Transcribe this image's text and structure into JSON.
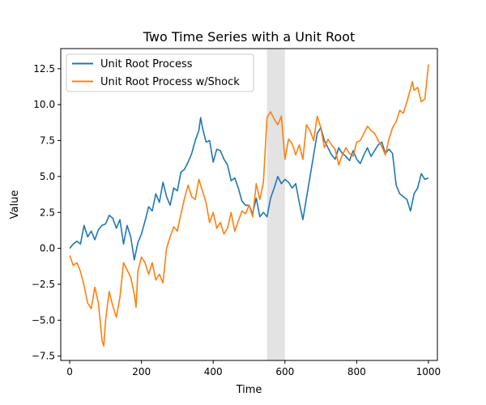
{
  "chart_data": {
    "type": "line",
    "title": "Two Time Series with a Unit Root",
    "xlabel": "Time",
    "ylabel": "Value",
    "xlim": [
      -25,
      1025
    ],
    "ylim": [
      -7.8,
      13.9
    ],
    "x_ticks": [
      0,
      200,
      400,
      600,
      800,
      1000
    ],
    "x_tick_labels": [
      "0",
      "200",
      "400",
      "600",
      "800",
      "1000"
    ],
    "y_ticks": [
      -7.5,
      -5.0,
      -2.5,
      0.0,
      2.5,
      5.0,
      7.5,
      10.0,
      12.5
    ],
    "y_tick_labels": [
      "−7.5",
      "−5.0",
      "−2.5",
      "0.0",
      "2.5",
      "5.0",
      "7.5",
      "10.0",
      "12.5"
    ],
    "grid": false,
    "legend_position": "top-left",
    "shaded_region": {
      "x_start": 550,
      "x_end": 600,
      "color": "#e3e3e3"
    },
    "series": [
      {
        "name": "Unit Root Process",
        "color": "#1f77b4",
        "points": [
          [
            0,
            0.0
          ],
          [
            10,
            0.3
          ],
          [
            20,
            0.5
          ],
          [
            30,
            0.3
          ],
          [
            40,
            1.6
          ],
          [
            50,
            0.8
          ],
          [
            60,
            1.2
          ],
          [
            70,
            0.6
          ],
          [
            80,
            1.3
          ],
          [
            90,
            1.6
          ],
          [
            100,
            1.7
          ],
          [
            110,
            2.3
          ],
          [
            120,
            2.1
          ],
          [
            130,
            1.4
          ],
          [
            140,
            2.0
          ],
          [
            150,
            0.3
          ],
          [
            160,
            1.6
          ],
          [
            170,
            0.8
          ],
          [
            180,
            -0.8
          ],
          [
            190,
            0.4
          ],
          [
            200,
            1.0
          ],
          [
            210,
            1.9
          ],
          [
            220,
            2.9
          ],
          [
            230,
            2.6
          ],
          [
            240,
            3.8
          ],
          [
            250,
            3.2
          ],
          [
            260,
            4.6
          ],
          [
            270,
            3.6
          ],
          [
            280,
            3.0
          ],
          [
            290,
            4.2
          ],
          [
            300,
            4.0
          ],
          [
            310,
            5.3
          ],
          [
            320,
            5.5
          ],
          [
            330,
            6.0
          ],
          [
            340,
            6.6
          ],
          [
            350,
            7.5
          ],
          [
            360,
            8.2
          ],
          [
            365,
            9.1
          ],
          [
            370,
            8.4
          ],
          [
            380,
            7.4
          ],
          [
            390,
            7.5
          ],
          [
            400,
            6.0
          ],
          [
            410,
            6.9
          ],
          [
            420,
            6.8
          ],
          [
            430,
            6.2
          ],
          [
            440,
            5.8
          ],
          [
            450,
            4.7
          ],
          [
            460,
            4.9
          ],
          [
            470,
            4.2
          ],
          [
            480,
            3.3
          ],
          [
            490,
            3.0
          ],
          [
            500,
            3.0
          ],
          [
            510,
            2.4
          ],
          [
            520,
            3.5
          ],
          [
            530,
            2.2
          ],
          [
            540,
            2.5
          ],
          [
            550,
            2.2
          ],
          [
            560,
            3.5
          ],
          [
            570,
            4.2
          ],
          [
            580,
            5.0
          ],
          [
            590,
            4.5
          ],
          [
            600,
            4.8
          ],
          [
            610,
            4.6
          ],
          [
            620,
            4.2
          ],
          [
            630,
            4.5
          ],
          [
            640,
            3.2
          ],
          [
            650,
            2.0
          ],
          [
            660,
            3.5
          ],
          [
            670,
            5.0
          ],
          [
            680,
            6.5
          ],
          [
            690,
            8.0
          ],
          [
            700,
            8.4
          ],
          [
            710,
            7.5
          ],
          [
            720,
            7.0
          ],
          [
            730,
            6.5
          ],
          [
            740,
            6.2
          ],
          [
            750,
            7.0
          ],
          [
            760,
            6.6
          ],
          [
            770,
            6.4
          ],
          [
            780,
            6.1
          ],
          [
            790,
            6.8
          ],
          [
            800,
            6.2
          ],
          [
            810,
            5.9
          ],
          [
            820,
            6.5
          ],
          [
            830,
            7.0
          ],
          [
            840,
            6.4
          ],
          [
            850,
            6.8
          ],
          [
            860,
            7.2
          ],
          [
            870,
            7.4
          ],
          [
            880,
            6.6
          ],
          [
            890,
            6.9
          ],
          [
            900,
            6.6
          ],
          [
            910,
            4.4
          ],
          [
            920,
            3.8
          ],
          [
            930,
            3.6
          ],
          [
            940,
            3.4
          ],
          [
            950,
            2.6
          ],
          [
            960,
            3.8
          ],
          [
            970,
            4.2
          ],
          [
            980,
            5.2
          ],
          [
            990,
            4.8
          ],
          [
            1000,
            4.9
          ]
        ]
      },
      {
        "name": "Unit Root Process w/Shock",
        "color": "#ff7f0e",
        "points": [
          [
            0,
            -0.5
          ],
          [
            10,
            -1.2
          ],
          [
            20,
            -1.0
          ],
          [
            30,
            -1.6
          ],
          [
            40,
            -2.6
          ],
          [
            50,
            -3.8
          ],
          [
            60,
            -4.2
          ],
          [
            70,
            -2.7
          ],
          [
            80,
            -3.8
          ],
          [
            90,
            -6.4
          ],
          [
            95,
            -6.8
          ],
          [
            100,
            -5.0
          ],
          [
            110,
            -3.0
          ],
          [
            120,
            -4.0
          ],
          [
            130,
            -4.8
          ],
          [
            140,
            -3.4
          ],
          [
            150,
            -1.0
          ],
          [
            160,
            -1.5
          ],
          [
            170,
            -2.0
          ],
          [
            180,
            -3.2
          ],
          [
            185,
            -4.1
          ],
          [
            190,
            -1.6
          ],
          [
            200,
            -0.6
          ],
          [
            210,
            -1.0
          ],
          [
            220,
            -1.8
          ],
          [
            230,
            -1.0
          ],
          [
            240,
            -2.2
          ],
          [
            250,
            -1.8
          ],
          [
            260,
            -2.4
          ],
          [
            270,
            0.0
          ],
          [
            280,
            0.8
          ],
          [
            290,
            1.5
          ],
          [
            300,
            1.2
          ],
          [
            310,
            2.4
          ],
          [
            320,
            3.5
          ],
          [
            330,
            4.4
          ],
          [
            340,
            3.6
          ],
          [
            350,
            3.4
          ],
          [
            360,
            4.8
          ],
          [
            370,
            4.0
          ],
          [
            380,
            3.2
          ],
          [
            390,
            1.8
          ],
          [
            400,
            2.5
          ],
          [
            410,
            1.4
          ],
          [
            420,
            1.8
          ],
          [
            430,
            1.0
          ],
          [
            440,
            1.4
          ],
          [
            450,
            2.5
          ],
          [
            460,
            1.2
          ],
          [
            470,
            1.9
          ],
          [
            480,
            2.6
          ],
          [
            490,
            2.4
          ],
          [
            500,
            3.0
          ],
          [
            510,
            2.2
          ],
          [
            520,
            4.5
          ],
          [
            530,
            3.4
          ],
          [
            540,
            4.6
          ],
          [
            550,
            9.1
          ],
          [
            560,
            9.5
          ],
          [
            570,
            9.0
          ],
          [
            580,
            8.6
          ],
          [
            590,
            9.2
          ],
          [
            600,
            6.2
          ],
          [
            610,
            7.6
          ],
          [
            620,
            7.3
          ],
          [
            630,
            6.5
          ],
          [
            640,
            7.2
          ],
          [
            650,
            6.2
          ],
          [
            660,
            8.6
          ],
          [
            670,
            8.2
          ],
          [
            680,
            7.5
          ],
          [
            690,
            9.2
          ],
          [
            700,
            8.4
          ],
          [
            710,
            7.0
          ],
          [
            720,
            7.6
          ],
          [
            730,
            7.2
          ],
          [
            740,
            6.9
          ],
          [
            750,
            5.8
          ],
          [
            760,
            6.5
          ],
          [
            770,
            7.0
          ],
          [
            780,
            6.6
          ],
          [
            790,
            6.4
          ],
          [
            800,
            7.4
          ],
          [
            810,
            7.5
          ],
          [
            820,
            8.0
          ],
          [
            830,
            8.5
          ],
          [
            840,
            8.2
          ],
          [
            850,
            8.0
          ],
          [
            860,
            7.5
          ],
          [
            870,
            7.1
          ],
          [
            880,
            6.5
          ],
          [
            890,
            7.6
          ],
          [
            900,
            8.4
          ],
          [
            910,
            8.8
          ],
          [
            920,
            9.6
          ],
          [
            930,
            9.4
          ],
          [
            940,
            10.2
          ],
          [
            950,
            11.1
          ],
          [
            955,
            11.6
          ],
          [
            960,
            11.0
          ],
          [
            970,
            11.2
          ],
          [
            980,
            10.2
          ],
          [
            990,
            10.4
          ],
          [
            995,
            11.5
          ],
          [
            1000,
            12.8
          ]
        ]
      }
    ]
  }
}
